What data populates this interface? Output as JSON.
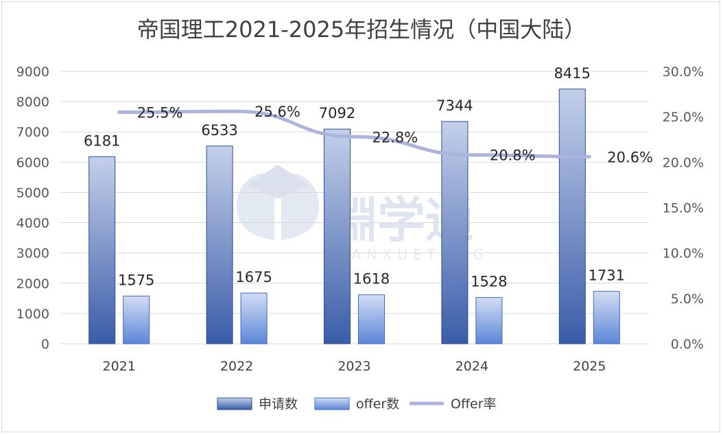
{
  "colors": {
    "applications": "#3a5ca8",
    "offers": "#5b86d8",
    "offer_rate": "#aab4dc",
    "grid": "#d9d9d9"
  },
  "chart_data": {
    "type": "bar",
    "title": "帝国理工2021-2025年招生情况（中国大陆）",
    "categories": [
      "2021",
      "2022",
      "2023",
      "2024",
      "2025"
    ],
    "series": [
      {
        "name": "申请数",
        "type": "bar",
        "axis": "left",
        "values": [
          6181,
          6533,
          7092,
          7344,
          8415
        ]
      },
      {
        "name": "offer数",
        "type": "bar",
        "axis": "left",
        "values": [
          1575,
          1675,
          1618,
          1528,
          1731
        ]
      },
      {
        "name": "Offer率",
        "type": "line",
        "axis": "right",
        "values": [
          25.5,
          25.6,
          22.8,
          20.8,
          20.6
        ],
        "labels": [
          "25.5%",
          "25.6%",
          "22.8%",
          "20.8%",
          "20.6%"
        ]
      }
    ],
    "ylim": [
      0,
      9000
    ],
    "yticks": [
      "0",
      "1000",
      "2000",
      "3000",
      "4000",
      "5000",
      "6000",
      "7000",
      "8000",
      "9000"
    ],
    "y2lim": [
      0,
      30
    ],
    "y2ticks": [
      "0.0%",
      "5.0%",
      "10.0%",
      "15.0%",
      "20.0%",
      "25.0%",
      "30.0%"
    ],
    "grid": true,
    "legend_position": "bottom"
  },
  "watermark": {
    "text": "淵学通",
    "subtext": "YUANXUETONG"
  }
}
